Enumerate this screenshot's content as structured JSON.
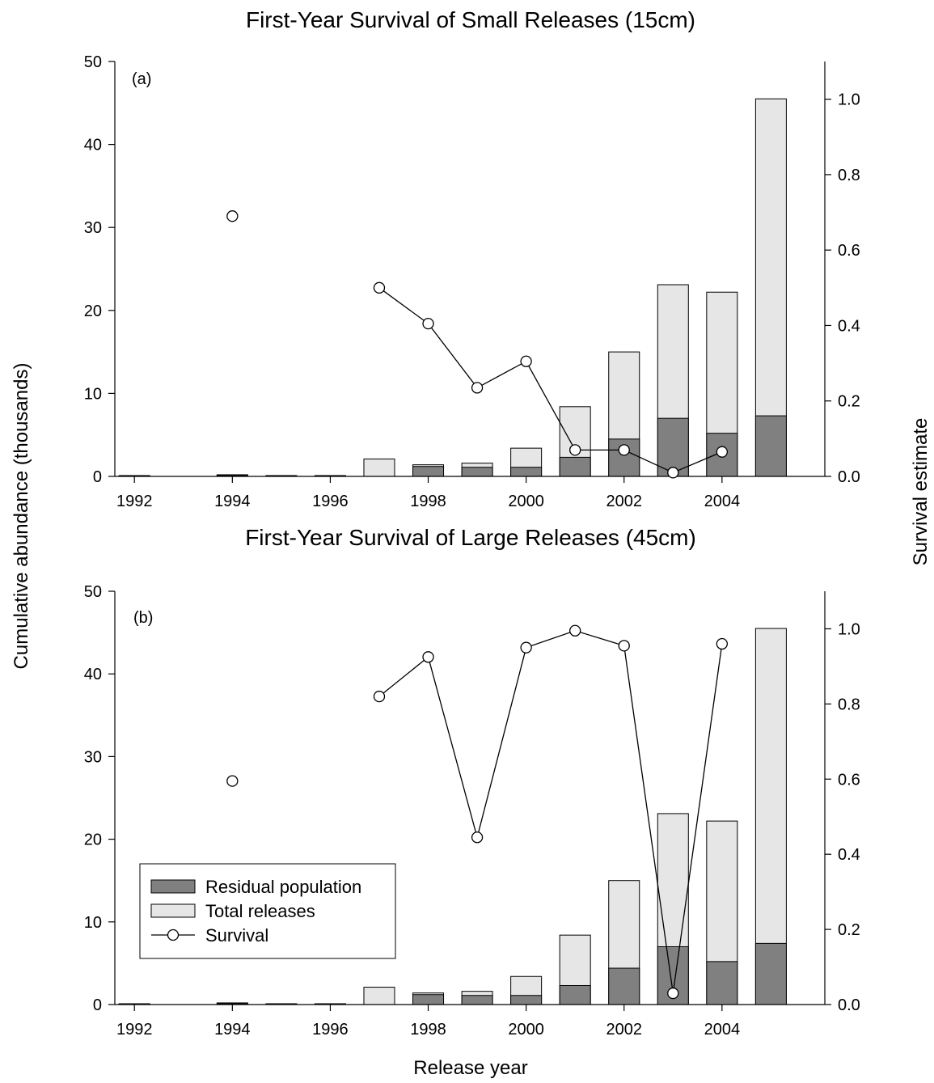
{
  "figure": {
    "shared_ylabel_left": "Cumulative abundance (thousands)",
    "shared_ylabel_right": "Survival estimate",
    "shared_xlabel": "Release year"
  },
  "colors": {
    "residual": "#808080",
    "total": "#e6e6e6",
    "survival_fill": "#ffffff",
    "line": "#000000"
  },
  "legend": {
    "entries": [
      "Residual population",
      "Total releases",
      "Survival"
    ],
    "placement": "panel (b) lower-left"
  },
  "chart_data": [
    {
      "type": "bar",
      "panel": "(a)",
      "title": "First-Year Survival of Small Releases (15cm)",
      "x_ticks": [
        1992,
        1994,
        1996,
        1998,
        2000,
        2002,
        2004
      ],
      "y_left_ticks": [
        0,
        10,
        20,
        30,
        40,
        50
      ],
      "y_right_ticks": [
        "0.0",
        "0.2",
        "0.4",
        "0.6",
        "0.8",
        "1.0"
      ],
      "xlim": [
        1991.6,
        2006.1
      ],
      "ylim_left": [
        0,
        50
      ],
      "ylim_right": [
        0,
        1.1
      ],
      "grid": false,
      "years": [
        1992,
        1994,
        1995,
        1996,
        1997,
        1998,
        1999,
        2000,
        2001,
        2002,
        2003,
        2004,
        2005
      ],
      "series": [
        {
          "name": "Total releases",
          "axis": "left",
          "values": [
            0.1,
            0.2,
            0.1,
            0.1,
            2.1,
            1.4,
            1.6,
            3.4,
            8.4,
            15.0,
            23.1,
            22.2,
            45.5
          ]
        },
        {
          "name": "Residual population",
          "axis": "left",
          "values": [
            0.05,
            0.1,
            0.05,
            0.05,
            0.0,
            1.2,
            1.1,
            1.1,
            2.3,
            4.5,
            7.0,
            5.2,
            7.3
          ]
        },
        {
          "name": "Survival",
          "axis": "right",
          "type": "line-marker",
          "points": [
            [
              1994,
              0.69
            ],
            [
              1997,
              0.5
            ],
            [
              1998,
              0.405
            ],
            [
              1999,
              0.235
            ],
            [
              2000,
              0.305
            ],
            [
              2001,
              0.07
            ],
            [
              2002,
              0.07
            ],
            [
              2003,
              0.01
            ],
            [
              2004,
              0.065
            ]
          ],
          "connected_from": 1997
        }
      ]
    },
    {
      "type": "bar",
      "panel": "(b)",
      "title": "First-Year Survival of Large Releases (45cm)",
      "x_ticks": [
        1992,
        1994,
        1996,
        1998,
        2000,
        2002,
        2004
      ],
      "y_left_ticks": [
        0,
        10,
        20,
        30,
        40,
        50
      ],
      "y_right_ticks": [
        "0.0",
        "0.2",
        "0.4",
        "0.6",
        "0.8",
        "1.0"
      ],
      "xlim": [
        1991.6,
        2006.1
      ],
      "ylim_left": [
        0,
        50
      ],
      "ylim_right": [
        0,
        1.1
      ],
      "grid": false,
      "years": [
        1992,
        1994,
        1995,
        1996,
        1997,
        1998,
        1999,
        2000,
        2001,
        2002,
        2003,
        2004,
        2005
      ],
      "series": [
        {
          "name": "Total releases",
          "axis": "left",
          "values": [
            0.1,
            0.2,
            0.1,
            0.1,
            2.1,
            1.4,
            1.6,
            3.4,
            8.4,
            15.0,
            23.1,
            22.2,
            45.5
          ]
        },
        {
          "name": "Residual population",
          "axis": "left",
          "values": [
            0.05,
            0.1,
            0.05,
            0.05,
            0.0,
            1.2,
            1.1,
            1.1,
            2.3,
            4.4,
            7.0,
            5.2,
            7.4
          ]
        },
        {
          "name": "Survival",
          "axis": "right",
          "type": "line-marker",
          "points": [
            [
              1994,
              0.595
            ],
            [
              1997,
              0.82
            ],
            [
              1998,
              0.925
            ],
            [
              1999,
              0.445
            ],
            [
              2000,
              0.95
            ],
            [
              2001,
              0.995
            ],
            [
              2002,
              0.955
            ],
            [
              2003,
              0.03
            ],
            [
              2004,
              0.96
            ]
          ],
          "connected_from": 1997
        }
      ]
    }
  ]
}
